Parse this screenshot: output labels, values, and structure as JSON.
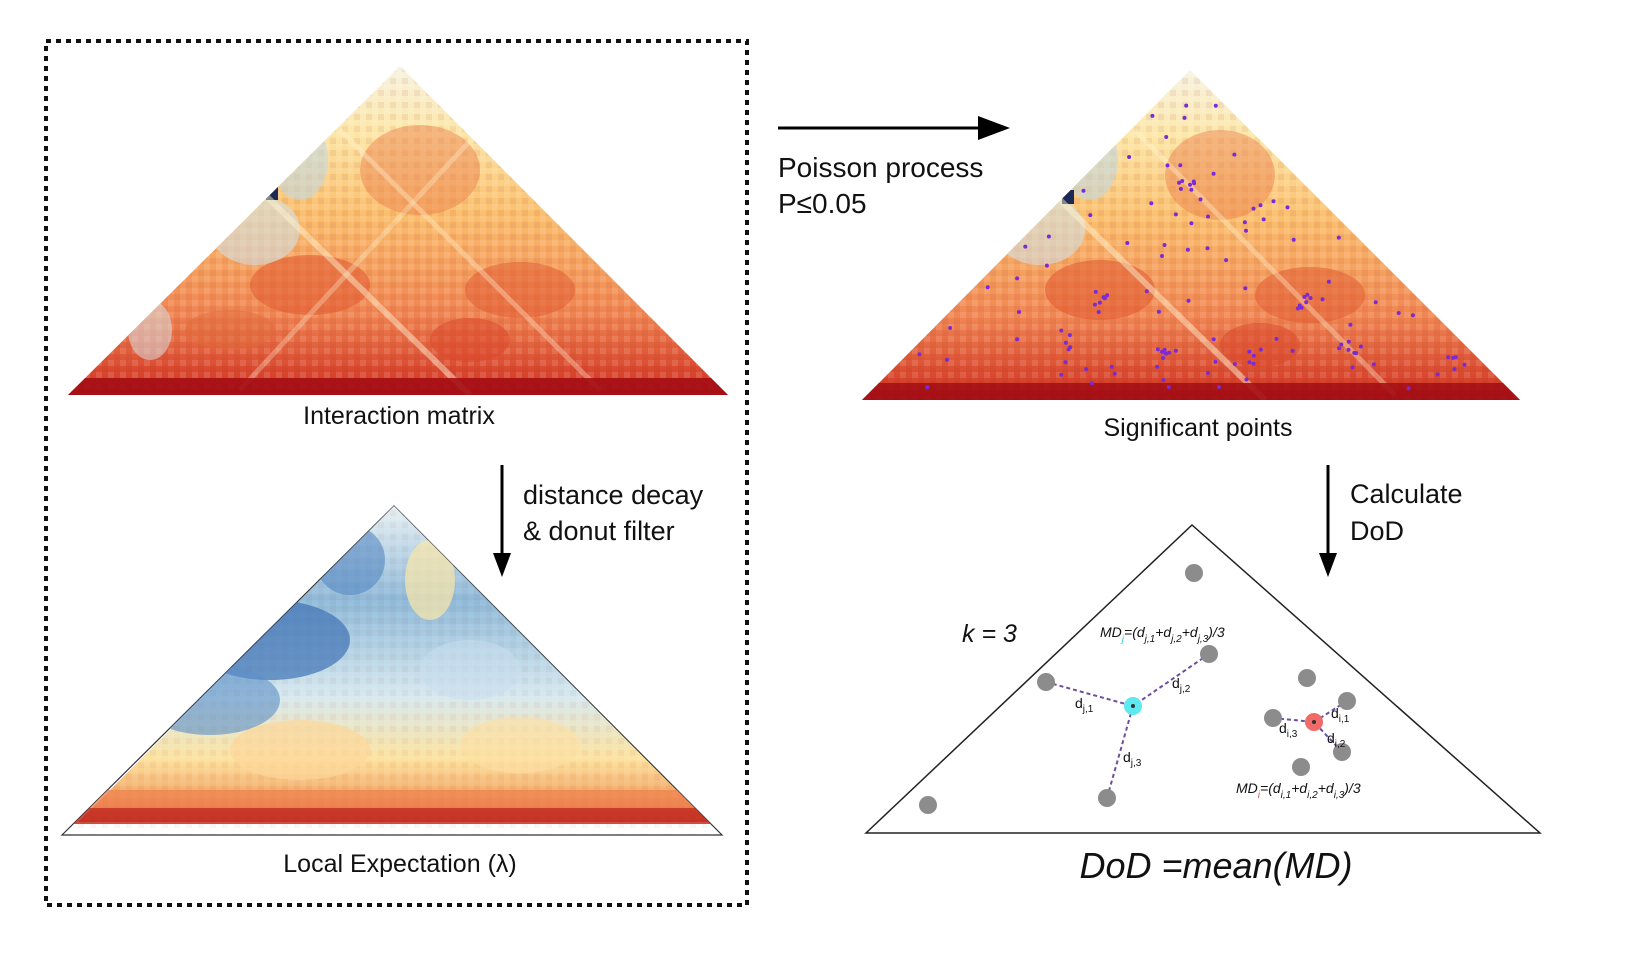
{
  "panels": {
    "interaction": {
      "caption": "Interaction matrix"
    },
    "expectation": {
      "caption": "Local Expectation (λ)"
    },
    "significant": {
      "caption": "Significant points"
    },
    "dod": {
      "formula": "DoD =mean(MD)"
    }
  },
  "arrows": {
    "poisson": {
      "line1": "Poisson process",
      "line2": "P≤0.05"
    },
    "decay": {
      "line1": "distance decay",
      "line2": "& donut filter"
    },
    "calc": {
      "line1": "Calculate",
      "line2": "DoD"
    }
  },
  "diagram": {
    "k_label": "k = 3",
    "md_j": {
      "prefix": "MD",
      "sub": "j",
      "body": "=(d",
      "t1": "j,1",
      "p1": "+d",
      "t2": "j,2",
      "p2": "+d",
      "t3": "j,3",
      "end": ")/3"
    },
    "md_i": {
      "prefix": "MD",
      "sub": "i",
      "body": "=(d",
      "t1": "i,1",
      "p1": "+d",
      "t2": "i,2",
      "p2": "+d",
      "t3": "i,3",
      "end": ")/3"
    },
    "dist_labels": {
      "j1": {
        "main": "d",
        "sub": "j,1"
      },
      "j2": {
        "main": "d",
        "sub": "j,2"
      },
      "j3": {
        "main": "d",
        "sub": "j,3"
      },
      "i1": {
        "main": "d",
        "sub": "i,1"
      },
      "i2": {
        "main": "d",
        "sub": "i,2"
      },
      "i3": {
        "main": "d",
        "sub": "i,3"
      }
    }
  },
  "colors": {
    "point_gray": "#8c8c8c",
    "point_cyan": "#5ee8f0",
    "point_red": "#f06a6a",
    "sig_purple": "#7a2bd6",
    "dash_purple": "#6b4f9e"
  }
}
